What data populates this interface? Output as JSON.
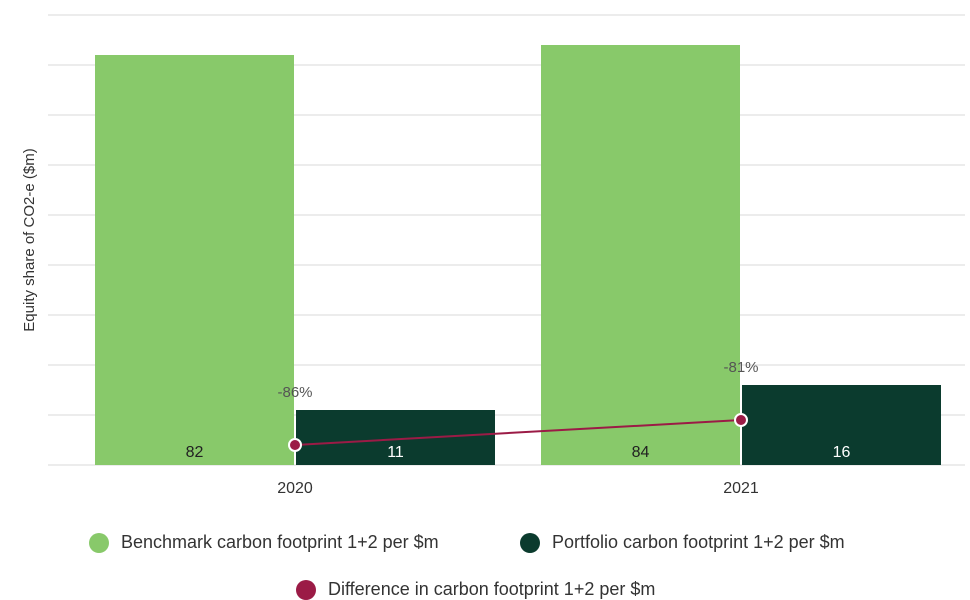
{
  "chart_data": {
    "type": "bar",
    "y_label": "Equity share of CO2-e ($m)",
    "categories": [
      "2020",
      "2021"
    ],
    "series": [
      {
        "name": "Benchmark carbon footprint 1+2 per $m",
        "color": "#88c96a",
        "values": [
          82,
          84
        ]
      },
      {
        "name": "Portfolio carbon footprint 1+2 per $m",
        "color": "#0b3b2e",
        "values": [
          11,
          16
        ]
      },
      {
        "name": "Difference in carbon footprint 1+2 per $m",
        "color": "#9b1b46",
        "type": "line",
        "axis": "y2",
        "values": [
          -86,
          -81
        ],
        "value_labels": [
          "-86%",
          "-81%"
        ]
      }
    ],
    "ylim": [
      0,
      90
    ],
    "yticks": [
      0,
      10,
      20,
      30,
      40,
      50,
      60,
      70,
      80,
      90
    ],
    "show_ytick_labels": false,
    "y2lim": [
      -90,
      0
    ],
    "grid": true,
    "legend": "bottom"
  }
}
